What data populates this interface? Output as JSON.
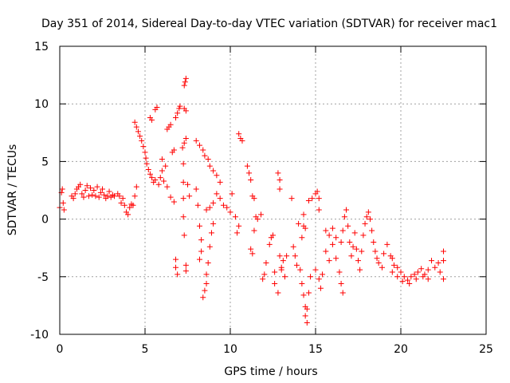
{
  "chart_data": {
    "type": "scatter",
    "title": "Day 351 of 2014, Sidereal Day-to-day VTEC variation (SDTVAR) for receiver mac1",
    "xlabel": "GPS time / hours",
    "ylabel": "SDTVAR / TECUs",
    "xlim": [
      0,
      25
    ],
    "ylim": [
      -10,
      15
    ],
    "xticks": [
      0,
      5,
      10,
      15,
      20,
      25
    ],
    "yticks": [
      -10,
      -5,
      0,
      5,
      10,
      15
    ],
    "xtick_labels": [
      "0",
      "5",
      "10",
      "15",
      "20",
      "25"
    ],
    "ytick_labels": [
      "-10",
      "-5",
      "0",
      "5",
      "10",
      "15"
    ],
    "grid": true,
    "marker": "+",
    "color": "#ff0000",
    "series": [
      {
        "name": "SDTVAR",
        "points": [
          [
            0.0,
            1.0
          ],
          [
            0.1,
            2.3
          ],
          [
            0.15,
            2.6
          ],
          [
            0.2,
            1.4
          ],
          [
            0.25,
            0.8
          ],
          [
            0.7,
            2.0
          ],
          [
            0.8,
            1.8
          ],
          [
            0.9,
            2.2
          ],
          [
            1.0,
            2.6
          ],
          [
            1.1,
            2.8
          ],
          [
            1.2,
            3.0
          ],
          [
            1.3,
            2.2
          ],
          [
            1.4,
            1.9
          ],
          [
            1.5,
            2.5
          ],
          [
            1.6,
            2.9
          ],
          [
            1.7,
            2.0
          ],
          [
            1.8,
            2.7
          ],
          [
            1.9,
            2.1
          ],
          [
            2.0,
            2.5
          ],
          [
            2.1,
            2.0
          ],
          [
            2.2,
            2.8
          ],
          [
            2.3,
            1.9
          ],
          [
            2.4,
            2.3
          ],
          [
            2.5,
            2.6
          ],
          [
            2.6,
            2.1
          ],
          [
            2.7,
            1.8
          ],
          [
            2.8,
            2.0
          ],
          [
            2.9,
            2.4
          ],
          [
            3.0,
            1.9
          ],
          [
            3.1,
            2.1
          ],
          [
            3.2,
            2.0
          ],
          [
            3.4,
            2.2
          ],
          [
            3.5,
            2.0
          ],
          [
            3.6,
            1.4
          ],
          [
            3.7,
            1.8
          ],
          [
            3.8,
            1.2
          ],
          [
            3.9,
            0.6
          ],
          [
            4.0,
            0.4
          ],
          [
            4.1,
            1.0
          ],
          [
            4.2,
            1.3
          ],
          [
            4.3,
            1.2
          ],
          [
            4.4,
            2.0
          ],
          [
            4.5,
            2.8
          ],
          [
            4.4,
            8.4
          ],
          [
            4.5,
            8.0
          ],
          [
            4.6,
            7.6
          ],
          [
            4.7,
            7.2
          ],
          [
            4.8,
            6.8
          ],
          [
            4.9,
            6.3
          ],
          [
            5.0,
            5.8
          ],
          [
            5.05,
            5.3
          ],
          [
            5.1,
            4.8
          ],
          [
            5.2,
            4.3
          ],
          [
            5.3,
            3.9
          ],
          [
            5.4,
            3.6
          ],
          [
            5.3,
            8.8
          ],
          [
            5.4,
            8.6
          ],
          [
            5.6,
            9.5
          ],
          [
            5.7,
            9.7
          ],
          [
            5.9,
            3.6
          ],
          [
            6.0,
            4.2
          ],
          [
            6.1,
            3.3
          ],
          [
            6.3,
            2.8
          ],
          [
            6.5,
            1.9
          ],
          [
            6.7,
            1.5
          ],
          [
            5.5,
            3.2
          ],
          [
            5.6,
            3.4
          ],
          [
            5.8,
            3.0
          ],
          [
            6.0,
            5.2
          ],
          [
            6.2,
            4.6
          ],
          [
            6.6,
            5.8
          ],
          [
            6.7,
            6.0
          ],
          [
            6.3,
            7.8
          ],
          [
            6.4,
            8.0
          ],
          [
            6.5,
            8.2
          ],
          [
            6.8,
            8.8
          ],
          [
            6.9,
            9.2
          ],
          [
            7.0,
            9.6
          ],
          [
            7.05,
            9.8
          ],
          [
            7.3,
            9.6
          ],
          [
            7.4,
            9.4
          ],
          [
            7.3,
            11.6
          ],
          [
            7.35,
            11.9
          ],
          [
            7.4,
            12.2
          ],
          [
            7.2,
            6.2
          ],
          [
            7.3,
            6.6
          ],
          [
            7.4,
            7.0
          ],
          [
            7.25,
            4.8
          ],
          [
            7.25,
            3.2
          ],
          [
            7.25,
            1.8
          ],
          [
            7.25,
            0.2
          ],
          [
            7.3,
            -1.4
          ],
          [
            6.8,
            -3.5
          ],
          [
            6.8,
            -4.2
          ],
          [
            6.9,
            -4.8
          ],
          [
            7.4,
            -4.0
          ],
          [
            7.4,
            -4.5
          ],
          [
            7.5,
            3.0
          ],
          [
            7.6,
            2.0
          ],
          [
            8.0,
            6.8
          ],
          [
            8.2,
            6.4
          ],
          [
            8.4,
            6.0
          ],
          [
            8.5,
            5.5
          ],
          [
            8.7,
            5.2
          ],
          [
            8.8,
            4.6
          ],
          [
            9.0,
            4.2
          ],
          [
            9.2,
            3.8
          ],
          [
            9.4,
            3.2
          ],
          [
            8.0,
            2.6
          ],
          [
            8.1,
            1.2
          ],
          [
            8.2,
            -0.6
          ],
          [
            8.3,
            -1.8
          ],
          [
            8.2,
            -3.5
          ],
          [
            8.3,
            -2.8
          ],
          [
            8.4,
            -6.8
          ],
          [
            8.5,
            -6.2
          ],
          [
            8.6,
            -5.6
          ],
          [
            8.6,
            -4.8
          ],
          [
            8.7,
            -3.8
          ],
          [
            8.8,
            -2.4
          ],
          [
            8.9,
            -1.2
          ],
          [
            9.0,
            -0.4
          ],
          [
            8.6,
            0.8
          ],
          [
            8.8,
            1.0
          ],
          [
            9.0,
            1.4
          ],
          [
            9.2,
            2.2
          ],
          [
            9.4,
            1.8
          ],
          [
            9.6,
            1.2
          ],
          [
            9.8,
            1.0
          ],
          [
            10.0,
            0.6
          ],
          [
            10.1,
            2.2
          ],
          [
            10.3,
            0.2
          ],
          [
            10.5,
            7.4
          ],
          [
            10.6,
            7.0
          ],
          [
            10.7,
            6.8
          ],
          [
            10.5,
            -0.6
          ],
          [
            10.4,
            -1.2
          ],
          [
            11.0,
            4.6
          ],
          [
            11.1,
            4.0
          ],
          [
            11.2,
            3.4
          ],
          [
            11.3,
            2.0
          ],
          [
            11.4,
            1.8
          ],
          [
            11.5,
            0.2
          ],
          [
            11.4,
            -1.0
          ],
          [
            11.2,
            -2.6
          ],
          [
            11.3,
            -3.0
          ],
          [
            11.6,
            0.0
          ],
          [
            11.8,
            0.4
          ],
          [
            11.9,
            -5.2
          ],
          [
            12.0,
            -4.8
          ],
          [
            12.1,
            -3.8
          ],
          [
            12.3,
            -2.2
          ],
          [
            12.4,
            -1.6
          ],
          [
            12.5,
            -1.4
          ],
          [
            12.6,
            -4.6
          ],
          [
            12.8,
            4.0
          ],
          [
            12.9,
            3.4
          ],
          [
            12.9,
            2.6
          ],
          [
            13.0,
            -4.2
          ],
          [
            13.1,
            -3.6
          ],
          [
            13.2,
            -5.0
          ],
          [
            13.3,
            -3.2
          ],
          [
            12.9,
            -3.2
          ],
          [
            13.0,
            -4.4
          ],
          [
            12.8,
            -6.4
          ],
          [
            12.6,
            -5.6
          ],
          [
            13.6,
            1.8
          ],
          [
            13.7,
            -2.4
          ],
          [
            13.8,
            -3.2
          ],
          [
            13.9,
            -4.0
          ],
          [
            14.0,
            -0.4
          ],
          [
            14.1,
            -4.4
          ],
          [
            14.2,
            -5.6
          ],
          [
            14.3,
            -6.6
          ],
          [
            14.4,
            -7.6
          ],
          [
            14.4,
            -8.4
          ],
          [
            14.5,
            -9.0
          ],
          [
            14.5,
            -7.8
          ],
          [
            14.6,
            -6.4
          ],
          [
            14.7,
            -5.0
          ],
          [
            14.2,
            -1.6
          ],
          [
            14.3,
            -0.6
          ],
          [
            14.3,
            0.4
          ],
          [
            14.4,
            -0.8
          ],
          [
            14.6,
            1.6
          ],
          [
            14.8,
            1.8
          ],
          [
            15.0,
            2.2
          ],
          [
            15.1,
            2.4
          ],
          [
            15.2,
            1.8
          ],
          [
            15.2,
            0.8
          ],
          [
            15.0,
            -4.4
          ],
          [
            15.2,
            -5.2
          ],
          [
            15.3,
            -6.0
          ],
          [
            15.4,
            -4.8
          ],
          [
            15.6,
            -1.0
          ],
          [
            15.8,
            -1.4
          ],
          [
            16.0,
            -2.2
          ],
          [
            16.2,
            -3.4
          ],
          [
            16.4,
            -4.6
          ],
          [
            16.5,
            -5.6
          ],
          [
            16.6,
            -6.4
          ],
          [
            15.6,
            -2.8
          ],
          [
            15.8,
            -3.6
          ],
          [
            16.0,
            -0.8
          ],
          [
            16.2,
            -1.6
          ],
          [
            16.5,
            -2.0
          ],
          [
            16.6,
            -1.0
          ],
          [
            16.7,
            0.2
          ],
          [
            16.8,
            0.8
          ],
          [
            16.9,
            -0.6
          ],
          [
            17.0,
            -2.0
          ],
          [
            17.1,
            -3.2
          ],
          [
            17.2,
            -2.4
          ],
          [
            17.3,
            -1.2
          ],
          [
            17.4,
            -2.6
          ],
          [
            17.5,
            -3.6
          ],
          [
            17.6,
            -4.4
          ],
          [
            17.7,
            -2.8
          ],
          [
            17.8,
            -1.4
          ],
          [
            17.9,
            -0.4
          ],
          [
            18.0,
            0.2
          ],
          [
            18.1,
            0.6
          ],
          [
            18.2,
            0.0
          ],
          [
            18.3,
            -1.0
          ],
          [
            18.4,
            -2.0
          ],
          [
            18.5,
            -2.8
          ],
          [
            18.6,
            -3.4
          ],
          [
            18.7,
            -3.8
          ],
          [
            18.9,
            -4.2
          ],
          [
            19.0,
            -3.0
          ],
          [
            19.2,
            -2.2
          ],
          [
            19.4,
            -3.2
          ],
          [
            19.5,
            -3.4
          ],
          [
            19.6,
            -4.0
          ],
          [
            19.8,
            -4.2
          ],
          [
            20.0,
            -4.6
          ],
          [
            20.2,
            -5.0
          ],
          [
            20.4,
            -5.3
          ],
          [
            20.6,
            -5.0
          ],
          [
            20.8,
            -4.8
          ],
          [
            21.0,
            -4.6
          ],
          [
            21.2,
            -4.3
          ],
          [
            21.4,
            -4.8
          ],
          [
            21.6,
            -4.4
          ],
          [
            21.8,
            -3.6
          ],
          [
            22.0,
            -4.2
          ],
          [
            22.2,
            -3.8
          ],
          [
            22.3,
            -4.6
          ],
          [
            22.5,
            -2.8
          ],
          [
            22.5,
            -3.6
          ],
          [
            22.5,
            -5.2
          ],
          [
            19.5,
            -4.6
          ],
          [
            19.8,
            -5.0
          ],
          [
            20.1,
            -5.4
          ],
          [
            20.5,
            -5.6
          ],
          [
            20.9,
            -5.2
          ],
          [
            21.3,
            -5.0
          ],
          [
            21.6,
            -5.2
          ]
        ]
      }
    ]
  }
}
